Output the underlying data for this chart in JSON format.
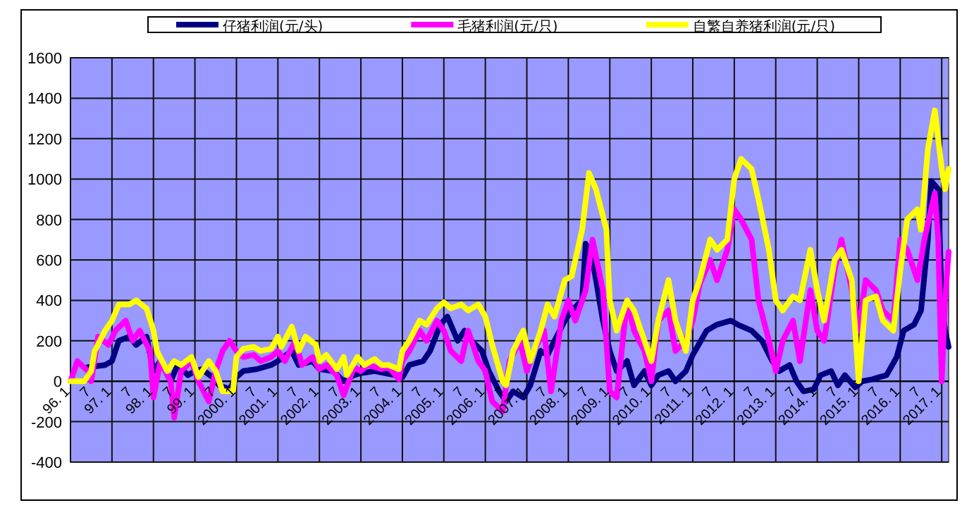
{
  "chart_data": {
    "type": "line",
    "legend": "top",
    "grid": true,
    "line_style": "solid",
    "marker": "none",
    "xlim": [
      "1996-01",
      "2017-03"
    ],
    "ylim": [
      -400,
      1600
    ],
    "yticks": [
      -400,
      -200,
      0,
      200,
      400,
      600,
      800,
      1000,
      1200,
      1400,
      1600
    ],
    "xticks": [
      {
        "value": "1996-01",
        "label": "96. 1"
      },
      {
        "value": "1996-07",
        "label": "7"
      },
      {
        "value": "1997-01",
        "label": "97. 1"
      },
      {
        "value": "1997-07",
        "label": "7"
      },
      {
        "value": "1998-01",
        "label": "98. 1"
      },
      {
        "value": "1998-07",
        "label": "7"
      },
      {
        "value": "1999-01",
        "label": "99. 1"
      },
      {
        "value": "1999-07",
        "label": "7"
      },
      {
        "value": "2000-01",
        "label": "2000. 1"
      },
      {
        "value": "2000-07",
        "label": "7"
      },
      {
        "value": "2001-01",
        "label": "2001. 1"
      },
      {
        "value": "2001-07",
        "label": "7"
      },
      {
        "value": "2002-01",
        "label": "2002. 1"
      },
      {
        "value": "2002-07",
        "label": "7"
      },
      {
        "value": "2003-01",
        "label": "2003. 1"
      },
      {
        "value": "2003-07",
        "label": "7"
      },
      {
        "value": "2004-01",
        "label": "2004. 1"
      },
      {
        "value": "2004-07",
        "label": "7"
      },
      {
        "value": "2005-01",
        "label": "2005. 1"
      },
      {
        "value": "2005-07",
        "label": "7"
      },
      {
        "value": "2006-01",
        "label": "2006. 1"
      },
      {
        "value": "2006-07",
        "label": "7"
      },
      {
        "value": "2007-01",
        "label": "2007. 1"
      },
      {
        "value": "2007-07",
        "label": "7"
      },
      {
        "value": "2008-01",
        "label": "2008. 1"
      },
      {
        "value": "2008-07",
        "label": "7"
      },
      {
        "value": "2009-01",
        "label": "2009. 1"
      },
      {
        "value": "2009-07",
        "label": "7"
      },
      {
        "value": "2010-01",
        "label": "2010. 1"
      },
      {
        "value": "2010-07",
        "label": "7"
      },
      {
        "value": "2011-01",
        "label": "2011. 1"
      },
      {
        "value": "2011-07",
        "label": "7"
      },
      {
        "value": "2012-01",
        "label": "2012. 1"
      },
      {
        "value": "2012-07",
        "label": "7"
      },
      {
        "value": "2013-01",
        "label": "2013. 1"
      },
      {
        "value": "2013-07",
        "label": "7"
      },
      {
        "value": "2014-01",
        "label": "2014. 1"
      },
      {
        "value": "2014-07",
        "label": "7"
      },
      {
        "value": "2015-01",
        "label": "2015. 1"
      },
      {
        "value": "2015-07",
        "label": "7"
      },
      {
        "value": "2016-01",
        "label": "2016. 1"
      },
      {
        "value": "2016-07",
        "label": "7"
      },
      {
        "value": "2017-01",
        "label": "2017. 1"
      }
    ],
    "series": [
      {
        "name": "仔猪利润(元/头)",
        "color": "#000080",
        "x": [
          "1996-06",
          "1996-11",
          "1997-01",
          "1997-03",
          "1997-06",
          "1997-08",
          "1997-11",
          "1998-01",
          "1998-03",
          "1998-06",
          "1998-08",
          "1998-11",
          "1999-01",
          "1999-03",
          "1999-06",
          "1999-08",
          "1999-11",
          "2000-01",
          "2000-03",
          "2000-07",
          "2000-11",
          "2001-01",
          "2001-05",
          "2001-07",
          "2001-11",
          "2002-01",
          "2002-05",
          "2002-08",
          "2002-11",
          "2003-01",
          "2003-05",
          "2003-08",
          "2003-11",
          "2004-01",
          "2004-03",
          "2004-07",
          "2004-09",
          "2004-12",
          "2005-02",
          "2005-05",
          "2005-07",
          "2005-09",
          "2005-12",
          "2006-02",
          "2006-05",
          "2006-07",
          "2006-09",
          "2006-12",
          "2007-02",
          "2007-05",
          "2007-07",
          "2007-09",
          "2007-12",
          "2008-02",
          "2008-05",
          "2008-06",
          "2008-08",
          "2008-11",
          "2009-01",
          "2009-03",
          "2009-06",
          "2009-08",
          "2009-11",
          "2010-01",
          "2010-03",
          "2010-06",
          "2010-08",
          "2010-11",
          "2011-01",
          "2011-05",
          "2011-08",
          "2011-12",
          "2012-02",
          "2012-06",
          "2012-09",
          "2012-12",
          "2013-02",
          "2013-05",
          "2013-07",
          "2013-09",
          "2013-12",
          "2014-02",
          "2014-05",
          "2014-07",
          "2014-09",
          "2014-12",
          "2015-02",
          "2015-05",
          "2015-07",
          "2015-09",
          "2015-12",
          "2016-02",
          "2016-05",
          "2016-07",
          "2016-09",
          "2016-10",
          "2016-12",
          "2017-01",
          "2017-02",
          "2017-03"
        ],
        "values": [
          70,
          80,
          100,
          200,
          220,
          180,
          220,
          50,
          100,
          0,
          80,
          30,
          50,
          60,
          20,
          -20,
          -40,
          20,
          50,
          60,
          80,
          100,
          150,
          80,
          100,
          60,
          50,
          0,
          30,
          40,
          50,
          40,
          30,
          20,
          80,
          100,
          150,
          280,
          320,
          200,
          250,
          200,
          150,
          50,
          -50,
          -100,
          -50,
          -80,
          -20,
          150,
          130,
          200,
          300,
          350,
          400,
          680,
          600,
          300,
          150,
          50,
          100,
          -20,
          50,
          -20,
          30,
          50,
          0,
          50,
          130,
          250,
          280,
          300,
          280,
          250,
          200,
          100,
          50,
          80,
          0,
          -50,
          -40,
          30,
          50,
          -20,
          30,
          -30,
          0,
          10,
          20,
          30,
          120,
          250,
          280,
          350,
          700,
          990,
          950,
          400,
          250,
          170
        ]
      },
      {
        "name": "毛猪利润(元/只)",
        "color": "#ff00ff",
        "x": [
          "1996-01",
          "1996-03",
          "1996-06",
          "1996-07",
          "1996-09",
          "1996-12",
          "1997-02",
          "1997-05",
          "1997-07",
          "1997-09",
          "1997-12",
          "1998-01",
          "1998-03",
          "1998-06",
          "1998-07",
          "1998-09",
          "1998-12",
          "1999-02",
          "1999-05",
          "1999-07",
          "1999-09",
          "1999-11",
          "2000-01",
          "2000-03",
          "2000-06",
          "2000-08",
          "2000-11",
          "2001-01",
          "2001-03",
          "2001-06",
          "2001-08",
          "2001-11",
          "2002-01",
          "2002-03",
          "2002-06",
          "2002-08",
          "2002-11",
          "2003-01",
          "2003-03",
          "2003-07",
          "2003-09",
          "2003-12",
          "2004-01",
          "2004-03",
          "2004-06",
          "2004-08",
          "2004-11",
          "2005-01",
          "2005-03",
          "2005-06",
          "2005-08",
          "2005-11",
          "2006-01",
          "2006-03",
          "2006-06",
          "2006-08",
          "2006-11",
          "2007-01",
          "2007-03",
          "2007-06",
          "2007-08",
          "2007-11",
          "2008-01",
          "2008-03",
          "2008-06",
          "2008-08",
          "2008-11",
          "2009-01",
          "2009-03",
          "2009-06",
          "2009-08",
          "2009-11",
          "2010-01",
          "2010-03",
          "2010-06",
          "2010-08",
          "2010-11",
          "2011-01",
          "2011-03",
          "2011-06",
          "2011-08",
          "2011-11",
          "2012-01",
          "2012-03",
          "2012-06",
          "2012-08",
          "2012-11",
          "2013-01",
          "2013-03",
          "2013-06",
          "2013-08",
          "2013-11",
          "2014-01",
          "2014-03",
          "2014-06",
          "2014-08",
          "2014-11",
          "2015-01",
          "2015-03",
          "2015-06",
          "2015-08",
          "2015-11",
          "2016-01",
          "2016-03",
          "2016-06",
          "2016-08",
          "2016-11",
          "2016-12",
          "2017-01",
          "2017-02",
          "2017-03"
        ],
        "values": [
          0,
          100,
          50,
          0,
          220,
          180,
          250,
          300,
          200,
          250,
          150,
          -80,
          100,
          0,
          -180,
          50,
          100,
          0,
          -100,
          50,
          150,
          200,
          150,
          120,
          130,
          100,
          120,
          150,
          100,
          200,
          80,
          120,
          60,
          80,
          30,
          -70,
          70,
          50,
          80,
          60,
          70,
          10,
          100,
          150,
          250,
          200,
          300,
          250,
          150,
          100,
          250,
          100,
          50,
          -100,
          -150,
          100,
          200,
          50,
          150,
          250,
          -50,
          300,
          400,
          300,
          450,
          700,
          450,
          -50,
          -80,
          400,
          250,
          150,
          0,
          300,
          350,
          150,
          200,
          300,
          480,
          600,
          500,
          650,
          850,
          800,
          700,
          400,
          200,
          50,
          200,
          300,
          100,
          450,
          250,
          200,
          550,
          700,
          450,
          250,
          500,
          450,
          350,
          300,
          700,
          650,
          500,
          700,
          930,
          700,
          0,
          400,
          640
        ]
      },
      {
        "name": "自繁自养猪利润(元/只)",
        "color": "#ffff00",
        "x": [
          "1996-01",
          "1996-05",
          "1996-07",
          "1996-08",
          "1996-11",
          "1997-01",
          "1997-03",
          "1997-06",
          "1997-08",
          "1997-11",
          "1998-01",
          "1998-02",
          "1998-05",
          "1998-07",
          "1998-09",
          "1998-12",
          "1999-02",
          "1999-05",
          "1999-07",
          "1999-09",
          "1999-12",
          "2000-01",
          "2000-03",
          "2000-06",
          "2000-08",
          "2000-11",
          "2001-01",
          "2001-02",
          "2001-05",
          "2001-07",
          "2001-09",
          "2001-12",
          "2002-01",
          "2002-03",
          "2002-06",
          "2002-08",
          "2002-09",
          "2002-12",
          "2003-02",
          "2003-05",
          "2003-07",
          "2003-09",
          "2003-12",
          "2004-01",
          "2004-03",
          "2004-06",
          "2004-08",
          "2004-11",
          "2005-01",
          "2005-03",
          "2005-06",
          "2005-08",
          "2005-11",
          "2006-01",
          "2006-03",
          "2006-06",
          "2006-07",
          "2006-09",
          "2006-12",
          "2007-02",
          "2007-05",
          "2007-07",
          "2007-09",
          "2007-12",
          "2008-02",
          "2008-05",
          "2008-07",
          "2008-09",
          "2008-12",
          "2009-01",
          "2009-03",
          "2009-06",
          "2009-08",
          "2009-11",
          "2010-01",
          "2010-03",
          "2010-06",
          "2010-08",
          "2010-11",
          "2011-01",
          "2011-03",
          "2011-06",
          "2011-08",
          "2011-11",
          "2012-01",
          "2012-03",
          "2012-06",
          "2012-08",
          "2012-11",
          "2013-01",
          "2013-03",
          "2013-06",
          "2013-08",
          "2013-11",
          "2014-01",
          "2014-03",
          "2014-06",
          "2014-08",
          "2014-11",
          "2015-01",
          "2015-03",
          "2015-06",
          "2015-08",
          "2015-11",
          "2016-01",
          "2016-03",
          "2016-06",
          "2016-07",
          "2016-09",
          "2016-11",
          "2017-01",
          "2017-02",
          "2017-03"
        ],
        "values": [
          0,
          0,
          50,
          150,
          250,
          300,
          380,
          380,
          400,
          360,
          250,
          150,
          50,
          100,
          80,
          120,
          20,
          100,
          50,
          -50,
          -50,
          120,
          160,
          170,
          150,
          160,
          220,
          170,
          270,
          150,
          220,
          180,
          100,
          130,
          60,
          120,
          30,
          120,
          80,
          110,
          80,
          80,
          60,
          150,
          200,
          300,
          280,
          360,
          390,
          360,
          380,
          350,
          380,
          320,
          180,
          0,
          -20,
          150,
          250,
          100,
          250,
          380,
          320,
          500,
          520,
          750,
          1030,
          950,
          750,
          400,
          250,
          400,
          350,
          200,
          100,
          300,
          500,
          300,
          150,
          400,
          500,
          700,
          650,
          700,
          1000,
          1100,
          1050,
          900,
          650,
          400,
          350,
          420,
          400,
          650,
          450,
          300,
          600,
          650,
          500,
          0,
          400,
          420,
          300,
          250,
          550,
          800,
          850,
          750,
          1150,
          1340,
          1050,
          950,
          1050
        ]
      }
    ]
  }
}
